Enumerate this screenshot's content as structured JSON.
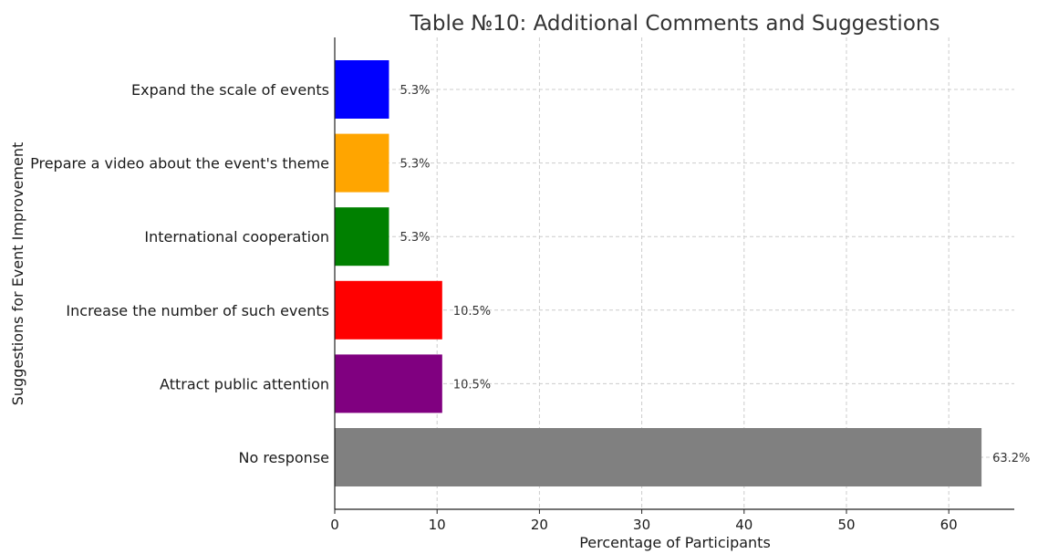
{
  "chart_data": {
    "type": "bar",
    "orientation": "horizontal",
    "title": "Table №10: Additional Comments and Suggestions",
    "xlabel": "Percentage of Participants",
    "ylabel": "Suggestions for Event Improvement",
    "categories": [
      "Expand the scale of events",
      "Prepare a video about the event's theme",
      "International cooperation",
      "Increase the number of such events",
      "Attract public attention",
      "No response"
    ],
    "values": [
      5.3,
      5.3,
      5.3,
      10.5,
      10.5,
      63.2
    ],
    "data_labels": [
      "5.3%",
      "5.3%",
      "5.3%",
      "10.5%",
      "10.5%",
      "63.2%"
    ],
    "colors": [
      "#0000ff",
      "#ffa500",
      "#008000",
      "#ff0000",
      "#800080",
      "#808080"
    ],
    "xlim": [
      0,
      66.4
    ],
    "xticks": [
      0,
      10,
      20,
      30,
      40,
      50,
      60
    ],
    "xtick_labels": [
      "0",
      "10",
      "20",
      "30",
      "40",
      "50",
      "60"
    ],
    "grid": true
  }
}
